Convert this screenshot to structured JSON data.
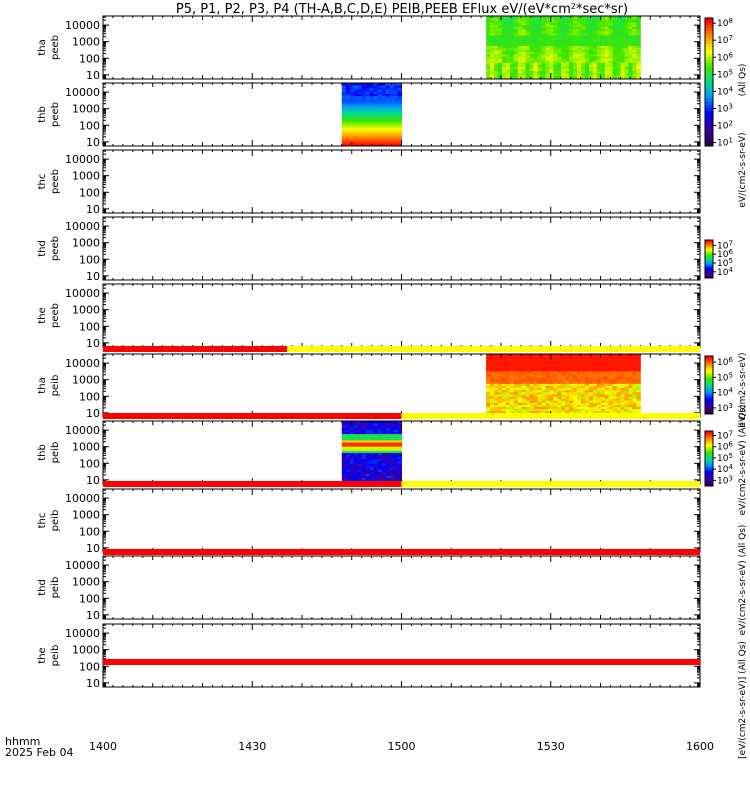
{
  "chart_data": {
    "type": "heatmap",
    "title": "P5, P1, P2, P3, P4 (TH-A,B,C,D,E) PEIB,PEEB EFlux eV/(eV*cm2*sec*sr)",
    "title_parts": {
      "main": "P5, P1, P2, P3, P4 (TH-A,B,C,D,E) PEIB,PEEB EFlux eV/(eV*cm",
      "sup": "2",
      "tail": "*sec*sr)"
    },
    "x_axis": {
      "label_line1": "hhmm",
      "label_line2": "2025 Feb 04",
      "tick_labels": [
        "1400",
        "1430",
        "1500",
        "1530",
        "1600"
      ],
      "tick_minutes": [
        0,
        30,
        60,
        90,
        120
      ],
      "range_minutes": [
        0,
        120
      ]
    },
    "y_tick_labels": [
      "10000",
      "1000",
      "100",
      "10"
    ],
    "y_tick_exponents": [
      4,
      3,
      2,
      1
    ],
    "y_range_log": [
      0.75,
      4.55
    ],
    "colorbar_exp_labels": [
      [
        "10",
        "10",
        "10",
        "10",
        "10",
        "10",
        "10",
        "10"
      ],
      [
        "10",
        "10",
        "10",
        "10",
        "10",
        "10"
      ],
      [
        "10",
        "10",
        "10",
        "10"
      ],
      [
        "10",
        "10",
        "10",
        "10"
      ],
      [
        "10",
        "10",
        "10",
        "10",
        "10"
      ],
      [
        "10",
        "10",
        "10",
        "10"
      ]
    ],
    "colorbars": [
      {
        "exponents": [
          8,
          7,
          6,
          5,
          4,
          3,
          2,
          1
        ],
        "range_log": [
          0.8,
          8.3
        ]
      },
      {
        "exponents": [
          8,
          7,
          6,
          5,
          4,
          3
        ],
        "range_log": [
          2.8,
          8.1
        ]
      },
      {
        "exponents": [
          7,
          6,
          5,
          4
        ],
        "range_log": [
          3.3,
          7.6
        ]
      },
      {
        "exponents": [
          6,
          5,
          4,
          3
        ],
        "range_log": [
          2.6,
          6.4
        ]
      },
      {
        "exponents": [
          7,
          6,
          5,
          4,
          3
        ],
        "range_log": [
          2.5,
          7.4
        ]
      },
      {
        "exponents": [
          6,
          5,
          4,
          3
        ],
        "range_log": [
          2.5,
          6.3
        ]
      }
    ],
    "colorbar_labels": [
      "(All Qs)",
      "eV/(cm2-s-sr-eV)",
      "[eV/(cm2-s-sr-eV)]",
      "eV/(cm2-s-sr-eV)",
      "eV/(cm2-s-sr-eV) (All Qs)",
      "(All Qs)",
      "eV/(cm2-s-sr-eV) (All Qs)",
      "[eV/(cm2-s-sr-eV)] (All Qs)",
      "[eV/(cm2-s-sr-eV)] (All Qs)"
    ],
    "panels": [
      {
        "probe": "tha",
        "instrument": "peeb"
      },
      {
        "probe": "thb",
        "instrument": "peeb"
      },
      {
        "probe": "thc",
        "instrument": "peeb"
      },
      {
        "probe": "thd",
        "instrument": "peeb"
      },
      {
        "probe": "the",
        "instrument": "peeb"
      },
      {
        "probe": "tha",
        "instrument": "peib"
      },
      {
        "probe": "thb",
        "instrument": "peib"
      },
      {
        "probe": "thc",
        "instrument": "peib"
      },
      {
        "probe": "thd",
        "instrument": "peib"
      },
      {
        "probe": "the",
        "instrument": "peib"
      }
    ],
    "spectrogram_blocks": [
      {
        "panel": 0,
        "t_start": 77,
        "t_end": 108,
        "profile": "tha_peeb"
      },
      {
        "panel": 1,
        "t_start": 48,
        "t_end": 60,
        "profile": "thb_peeb"
      },
      {
        "panel": 5,
        "t_start": 77,
        "t_end": 108,
        "profile": "tha_peib"
      },
      {
        "panel": 6,
        "t_start": 48,
        "t_end": 60,
        "profile": "thb_peib"
      }
    ],
    "status_bars": [
      {
        "segments": [
          {
            "t_start": 0,
            "t_end": 37,
            "color": "#ff0000"
          },
          {
            "t_start": 37,
            "t_end": 120,
            "color": "#ffff00"
          }
        ]
      },
      {
        "segments": [
          {
            "t_start": 0,
            "t_end": 60,
            "color": "#ff0000"
          },
          {
            "t_start": 60,
            "t_end": 120,
            "color": "#ffff00"
          }
        ]
      },
      {
        "segments": [
          {
            "t_start": 0,
            "t_end": 60,
            "color": "#ff0000"
          },
          {
            "t_start": 60,
            "t_end": 120,
            "color": "#ffff00"
          }
        ]
      },
      {
        "segments": [
          {
            "t_start": 0,
            "t_end": 120,
            "color": "#ff0000"
          }
        ]
      },
      {
        "segments": [
          {
            "t_start": 0,
            "t_end": 120,
            "color": "#ff0000"
          }
        ]
      }
    ],
    "colors": {
      "status_red": "#ff0000",
      "status_yellow": "#ffff00",
      "axis": "#000000",
      "background": "#ffffff"
    }
  }
}
